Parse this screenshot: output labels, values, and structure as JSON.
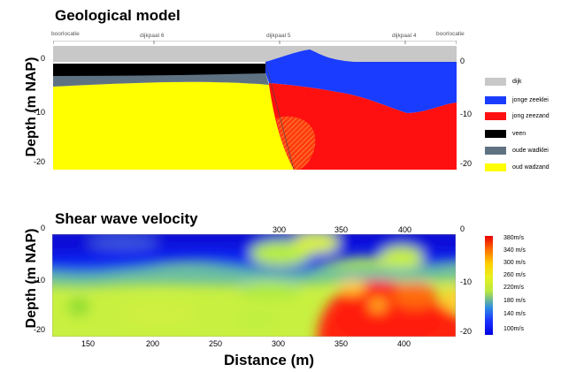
{
  "geo": {
    "title": "Geological model",
    "ylabel": "Depth (m NAP)",
    "top_labels": [
      "boorlocatie",
      "dijkpaal 6",
      "dijkpaal 5",
      "dijkpaal 4",
      "boorlocatie"
    ],
    "yticks_left": [
      "0",
      "-10",
      "-20"
    ],
    "yticks_right": [
      "0",
      "-10",
      "-20"
    ],
    "legend": [
      {
        "label": "dijk",
        "color": "#c8c8c8"
      },
      {
        "label": "jonge zeeklei",
        "color": "#1a3cff"
      },
      {
        "label": "jong zeezand",
        "color": "#ff1010"
      },
      {
        "label": "veen",
        "color": "#000000"
      },
      {
        "label": "oude wadklei",
        "color": "#5f7282"
      },
      {
        "label": "oud wadzand",
        "color": "#ffff00"
      }
    ]
  },
  "vel": {
    "title": "Shear wave velocity",
    "ylabel": "Depth (m NAP)",
    "xlabel": "Distance (m)",
    "xticks_top": [
      "300",
      "350",
      "400"
    ],
    "xticks_bottom": [
      "150",
      "200",
      "250",
      "300",
      "350",
      "400"
    ],
    "yticks_left": [
      "0",
      "-10",
      "-20"
    ],
    "yticks_right": [
      "0",
      "-10",
      "-20"
    ],
    "colorbar_labels": [
      "380m/s",
      "340 m/s",
      "300 m/s",
      "260 m/s",
      "220m/s",
      "180 m/s",
      "140 m/s",
      "100m/s"
    ]
  }
}
